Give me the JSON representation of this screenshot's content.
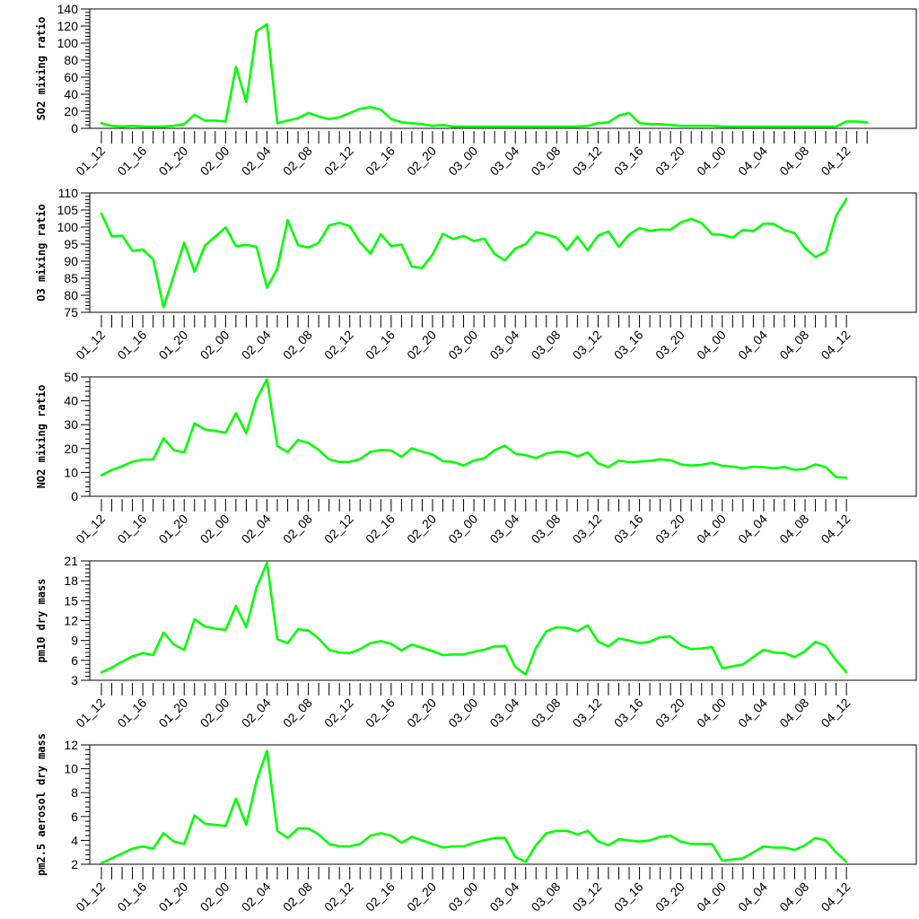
{
  "chart_data": [
    {
      "type": "line",
      "ylabel": "SO2 mixing ratio",
      "ylim": [
        0,
        140
      ],
      "yticks": [
        0,
        20,
        40,
        60,
        80,
        100,
        120,
        140
      ],
      "xticks": [
        "01_12",
        "01_16",
        "01_20",
        "02_00",
        "02_04",
        "02_08",
        "02_12",
        "02_16",
        "02_20",
        "03_00",
        "03_04",
        "03_08",
        "03_12",
        "03_16",
        "03_20",
        "04_00",
        "04_04",
        "04_08",
        "04_12"
      ],
      "line_color": "#00ff00",
      "series": [
        {
          "values": [
            6,
            3,
            2,
            3,
            2,
            2,
            2,
            3,
            5,
            16,
            9,
            9,
            8,
            72,
            31,
            114,
            122,
            6,
            9,
            12,
            18,
            14,
            11,
            13,
            18,
            23,
            25,
            22,
            11,
            7,
            6,
            5,
            3,
            4,
            2,
            2,
            2,
            2,
            2,
            2,
            2,
            2,
            2,
            2,
            2,
            2,
            2,
            3,
            6,
            7,
            15,
            18,
            6,
            5,
            5,
            4,
            3,
            3,
            3,
            3,
            2,
            2,
            2,
            2,
            2,
            2,
            2,
            2,
            2,
            2,
            2,
            2,
            8,
            8,
            7
          ]
        }
      ]
    },
    {
      "type": "line",
      "ylabel": "O3 mixing ratio",
      "ylim": [
        75,
        110
      ],
      "yticks": [
        75,
        80,
        85,
        90,
        95,
        100,
        105,
        110
      ],
      "xticks": [
        "01_12",
        "01_16",
        "01_20",
        "02_00",
        "02_04",
        "02_08",
        "02_12",
        "02_16",
        "02_20",
        "03_00",
        "03_04",
        "03_08",
        "03_12",
        "03_16",
        "03_20",
        "04_00",
        "04_04",
        "04_08",
        "04_12"
      ],
      "line_color": "#00ff00",
      "series": [
        {
          "values": [
            104,
            97.3,
            97.5,
            93,
            93.4,
            90.5,
            76.5,
            85.8,
            95.4,
            86.9,
            94.5,
            97.2,
            99.9,
            94.4,
            94.8,
            94.2,
            82.2,
            87.8,
            102,
            94.7,
            94,
            95.4,
            100.5,
            101.2,
            100.3,
            95.5,
            92.2,
            97.9,
            94.4,
            94.9,
            88.4,
            88,
            92,
            98,
            96.5,
            97.4,
            95.9,
            96.6,
            92.1,
            90.2,
            93.7,
            95,
            98.5,
            97.8,
            96.9,
            93.3,
            97.2,
            93.2,
            97.5,
            98.7,
            94.2,
            97.8,
            99.7,
            98.9,
            99.3,
            99.2,
            101.4,
            102.4,
            101.2,
            97.9,
            97.7,
            96.9,
            99.2,
            98.8,
            101,
            100.9,
            99.1,
            98.2,
            93.8,
            91.2,
            92.8,
            103.3,
            108.3
          ]
        }
      ]
    },
    {
      "type": "line",
      "ylabel": "NO2 mixing ratio",
      "ylim": [
        0,
        50
      ],
      "yticks": [
        0,
        10,
        20,
        30,
        40,
        50
      ],
      "xticks": [
        "01_12",
        "01_16",
        "01_20",
        "02_00",
        "02_04",
        "02_08",
        "02_12",
        "02_16",
        "02_20",
        "03_00",
        "03_04",
        "03_08",
        "03_12",
        "03_16",
        "03_20",
        "04_00",
        "04_04",
        "04_08",
        "04_12"
      ],
      "line_color": "#00ff00",
      "series": [
        {
          "values": [
            8.8,
            11,
            12.6,
            14.5,
            15.4,
            15.4,
            24.3,
            19.3,
            18.4,
            30.6,
            28,
            27.4,
            26.6,
            34.8,
            26.4,
            40.9,
            49,
            21.1,
            18.5,
            23.6,
            22.4,
            19.4,
            15.5,
            14.4,
            14.4,
            15.6,
            18.6,
            19.4,
            19.2,
            16.5,
            20.1,
            18.7,
            17.5,
            14.7,
            14.4,
            12.9,
            15,
            15.9,
            19.3,
            21.2,
            17.9,
            17.2,
            16,
            17.9,
            18.7,
            18.5,
            16.7,
            18.4,
            13.8,
            12.3,
            15,
            14.3,
            14.5,
            14.9,
            15.5,
            15.1,
            13.4,
            12.9,
            13.2,
            14,
            12.8,
            12.5,
            11.7,
            12.4,
            12.2,
            11.7,
            12.3,
            11.1,
            11.5,
            13.4,
            12.2,
            8,
            7.8
          ]
        }
      ]
    },
    {
      "type": "line",
      "ylabel": "pm10 dry mass",
      "ylim": [
        3,
        21
      ],
      "yticks": [
        3,
        6,
        9,
        12,
        15,
        18,
        21
      ],
      "xticks": [
        "01_12",
        "01_16",
        "01_20",
        "02_00",
        "02_04",
        "02_08",
        "02_12",
        "02_16",
        "02_20",
        "03_00",
        "03_04",
        "03_08",
        "03_12",
        "03_16",
        "03_20",
        "04_00",
        "04_04",
        "04_08",
        "04_12"
      ],
      "line_color": "#00ff00",
      "series": [
        {
          "values": [
            4.2,
            4.9,
            5.8,
            6.6,
            7.1,
            6.8,
            10.2,
            8.4,
            7.6,
            12.2,
            11.1,
            10.8,
            10.6,
            14.2,
            11,
            17,
            20.7,
            9.2,
            8.6,
            10.7,
            10.5,
            9.3,
            7.6,
            7.2,
            7.1,
            7.7,
            8.6,
            8.9,
            8.5,
            7.5,
            8.4,
            7.9,
            7.4,
            6.8,
            6.9,
            6.9,
            7.3,
            7.6,
            8.1,
            8.2,
            5,
            3.9,
            7.9,
            10.4,
            11,
            10.9,
            10.4,
            11.3,
            8.8,
            8.1,
            9.3,
            9,
            8.6,
            8.8,
            9.5,
            9.6,
            8.3,
            7.7,
            7.8,
            8,
            4.8,
            5.1,
            5.4,
            6.5,
            7.6,
            7.2,
            7.1,
            6.5,
            7.4,
            8.8,
            8.2,
            6,
            4.2
          ]
        }
      ]
    },
    {
      "type": "line",
      "ylabel": "pm2.5 aerosol dry mass",
      "ylim": [
        2,
        12
      ],
      "yticks": [
        2,
        4,
        6,
        8,
        10,
        12
      ],
      "xticks": [
        "01_12",
        "01_16",
        "01_20",
        "02_00",
        "02_04",
        "02_08",
        "02_12",
        "02_16",
        "02_20",
        "03_00",
        "03_04",
        "03_08",
        "03_12",
        "03_16",
        "03_20",
        "04_00",
        "04_04",
        "04_08",
        "04_12"
      ],
      "line_color": "#00ff00",
      "series": [
        {
          "values": [
            2.1,
            2.5,
            2.9,
            3.3,
            3.5,
            3.3,
            4.6,
            3.9,
            3.7,
            6.1,
            5.4,
            5.3,
            5.2,
            7.5,
            5.3,
            9,
            11.5,
            4.8,
            4.2,
            5,
            5,
            4.5,
            3.7,
            3.5,
            3.5,
            3.7,
            4.4,
            4.6,
            4.4,
            3.8,
            4.3,
            4,
            3.7,
            3.4,
            3.5,
            3.5,
            3.8,
            4,
            4.2,
            4.2,
            2.6,
            2.2,
            3.6,
            4.6,
            4.8,
            4.8,
            4.5,
            4.8,
            3.9,
            3.6,
            4.1,
            4,
            3.9,
            4,
            4.3,
            4.4,
            3.9,
            3.7,
            3.7,
            3.7,
            2.3,
            2.4,
            2.5,
            3,
            3.5,
            3.4,
            3.4,
            3.2,
            3.6,
            4.2,
            4,
            3,
            2.2
          ]
        }
      ]
    }
  ]
}
